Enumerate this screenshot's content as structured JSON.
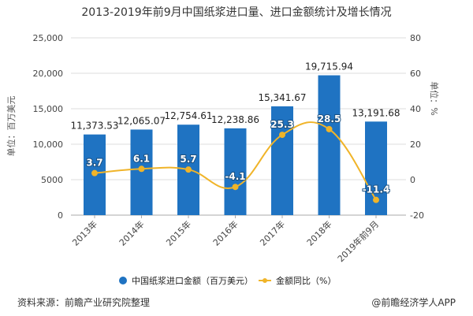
{
  "chart_data": {
    "type": "bar+line",
    "title": "2013-2019年前9月中国纸浆进口量、进口金额统计及增长情况",
    "categories": [
      "2013年",
      "2014年",
      "2015年",
      "2016年",
      "2017年",
      "2018年",
      "2019年前9月"
    ],
    "series": [
      {
        "name": "中国纸浆进口金额（百万美元）",
        "type": "bar",
        "axis": "left",
        "color": "#1f73c2",
        "values": [
          11373.53,
          12065.07,
          12754.61,
          12238.86,
          15341.67,
          19715.94,
          13191.68
        ],
        "labels": [
          "11,373.53",
          "12,065.07",
          "12,754.61",
          "12,238.86",
          "15,341.67",
          "19,715.94",
          "13,191.68"
        ]
      },
      {
        "name": "金额同比（%）",
        "type": "line",
        "axis": "right",
        "color": "#f0b429",
        "values": [
          3.7,
          6.1,
          5.7,
          -4.1,
          25.3,
          28.5,
          -11.4
        ],
        "labels": [
          "3.7",
          "6.1",
          "5.7",
          "-4.1",
          "25.3",
          "28.5",
          "-11.4"
        ]
      }
    ],
    "ylabel_left": "单位：百万美元",
    "ylabel_right": "单位：%",
    "ylim_left": [
      0,
      25000
    ],
    "yticks_left": [
      "0",
      "5000",
      "10,000",
      "15,000",
      "20,000",
      "25,000"
    ],
    "ylim_right": [
      -20,
      80
    ],
    "yticks_right": [
      "-20",
      "0",
      "20",
      "40",
      "60",
      "80"
    ],
    "grid": true,
    "legend_position": "bottom"
  },
  "footer": {
    "source": "资料来源：前瞻产业研究院整理",
    "credit": "@前瞻经济学人APP"
  }
}
